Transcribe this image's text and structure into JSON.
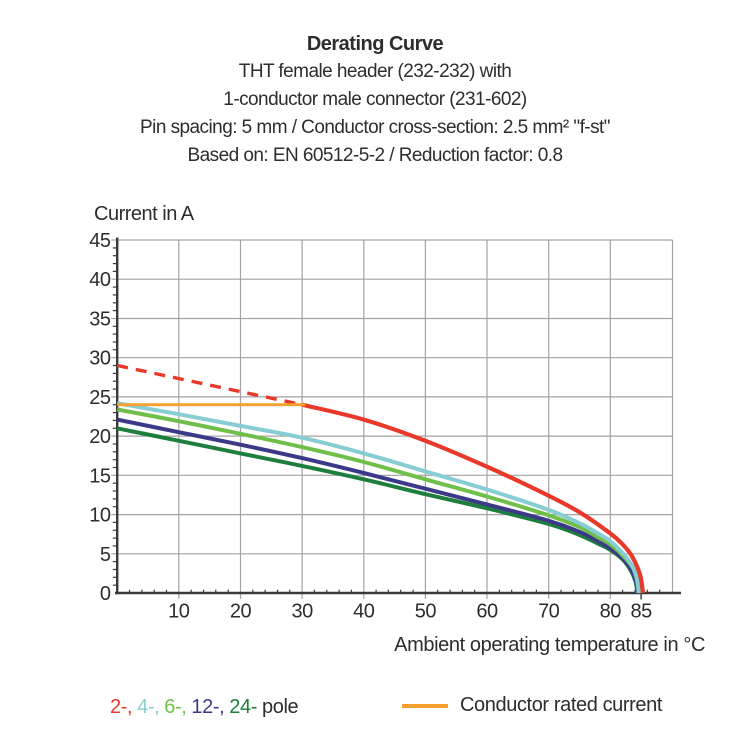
{
  "header": {
    "title": "Derating Curve",
    "subtitle_lines": [
      "THT female header (232-232) with",
      "1-conductor male connector (231-602)",
      "Pin spacing: 5 mm / Conductor cross-section: 2.5 mm² \"f-st\"",
      "Based on: EN 60512-5-2 / Reduction factor: 0.8"
    ]
  },
  "chart_data": {
    "type": "line",
    "title": "Derating Curve",
    "xlabel": "Ambient operating temperature in °C",
    "ylabel": "Current in A",
    "xlim": [
      0,
      90
    ],
    "ylim": [
      0,
      45
    ],
    "x_ticks": [
      10,
      20,
      30,
      40,
      50,
      60,
      70,
      80,
      85
    ],
    "y_ticks": [
      0,
      5,
      10,
      15,
      20,
      25,
      30,
      35,
      40,
      45
    ],
    "x_minor_step": 2,
    "y_minor_step": 1,
    "grid": true,
    "grid_color": "#a3a3a3",
    "axis_color": "#3a3a3a",
    "series": [
      {
        "name": "2-pole-extrapolated-dashed",
        "color": "#e8392b",
        "width": 3.4,
        "dash": "11 8",
        "points": [
          [
            0,
            29
          ],
          [
            30,
            24
          ]
        ]
      },
      {
        "name": "24-pole",
        "color": "#1e7e3e",
        "width": 4,
        "points": [
          [
            0,
            21.0
          ],
          [
            10,
            19.4
          ],
          [
            20,
            17.8
          ],
          [
            30,
            16.2
          ],
          [
            40,
            14.5
          ],
          [
            50,
            12.6
          ],
          [
            60,
            10.8
          ],
          [
            70,
            8.8
          ],
          [
            75,
            7.4
          ],
          [
            78,
            6.3
          ],
          [
            80,
            5.5
          ],
          [
            82,
            4.3
          ],
          [
            83.3,
            2.9
          ],
          [
            84.1,
            1.4
          ],
          [
            84.4,
            0
          ]
        ]
      },
      {
        "name": "12-pole",
        "color": "#3c3a88",
        "width": 4,
        "points": [
          [
            0,
            22.1
          ],
          [
            10,
            20.5
          ],
          [
            20,
            18.9
          ],
          [
            30,
            17.2
          ],
          [
            40,
            15.3
          ],
          [
            50,
            13.3
          ],
          [
            60,
            11.3
          ],
          [
            70,
            9.2
          ],
          [
            75,
            7.8
          ],
          [
            78,
            6.6
          ],
          [
            80,
            5.7
          ],
          [
            82,
            4.4
          ],
          [
            83.4,
            3.0
          ],
          [
            84.2,
            1.5
          ],
          [
            84.5,
            0
          ]
        ]
      },
      {
        "name": "6-pole",
        "color": "#70bf4b",
        "width": 4,
        "points": [
          [
            0,
            23.4
          ],
          [
            10,
            21.9
          ],
          [
            20,
            20.3
          ],
          [
            30,
            18.6
          ],
          [
            40,
            16.7
          ],
          [
            50,
            14.5
          ],
          [
            60,
            12.3
          ],
          [
            70,
            9.9
          ],
          [
            75,
            8.4
          ],
          [
            78,
            7.1
          ],
          [
            80,
            6.2
          ],
          [
            82,
            4.8
          ],
          [
            83.7,
            3.2
          ],
          [
            84.7,
            1.6
          ],
          [
            85,
            0
          ]
        ]
      },
      {
        "name": "4-pole",
        "color": "#87cdd3",
        "width": 4,
        "points": [
          [
            0,
            24.2
          ],
          [
            10,
            22.8
          ],
          [
            20,
            21.3
          ],
          [
            30,
            19.8
          ],
          [
            40,
            17.8
          ],
          [
            50,
            15.5
          ],
          [
            60,
            13.2
          ],
          [
            70,
            10.6
          ],
          [
            75,
            8.9
          ],
          [
            78,
            7.6
          ],
          [
            80,
            6.6
          ],
          [
            82,
            5.1
          ],
          [
            83.5,
            3.5
          ],
          [
            84.3,
            1.8
          ],
          [
            84.6,
            0
          ]
        ]
      },
      {
        "name": "2-pole",
        "color": "#e8392b",
        "width": 4.2,
        "points": [
          [
            30,
            24
          ],
          [
            40,
            22.1
          ],
          [
            50,
            19.4
          ],
          [
            60,
            16.1
          ],
          [
            70,
            12.4
          ],
          [
            75,
            10.3
          ],
          [
            80,
            7.6
          ],
          [
            82,
            6.2
          ],
          [
            83.5,
            4.7
          ],
          [
            84.8,
            2.4
          ],
          [
            85.3,
            0
          ]
        ]
      },
      {
        "name": "conductor-rated-current",
        "color": "#f5a02d",
        "width": 2.8,
        "points": [
          [
            0,
            24
          ],
          [
            30.5,
            24
          ]
        ]
      }
    ]
  },
  "legend": {
    "pole_items": [
      {
        "label": "2-,",
        "color": "#e8392b"
      },
      {
        "label": "4-,",
        "color": "#87cdd3"
      },
      {
        "label": "6-,",
        "color": "#70bf4b"
      },
      {
        "label": "12-,",
        "color": "#3c3a88"
      },
      {
        "label": "24-",
        "color": "#1e7e3e"
      }
    ],
    "pole_suffix": "pole",
    "rated_label": "Conductor rated current",
    "rated_color": "#f5a02d"
  }
}
